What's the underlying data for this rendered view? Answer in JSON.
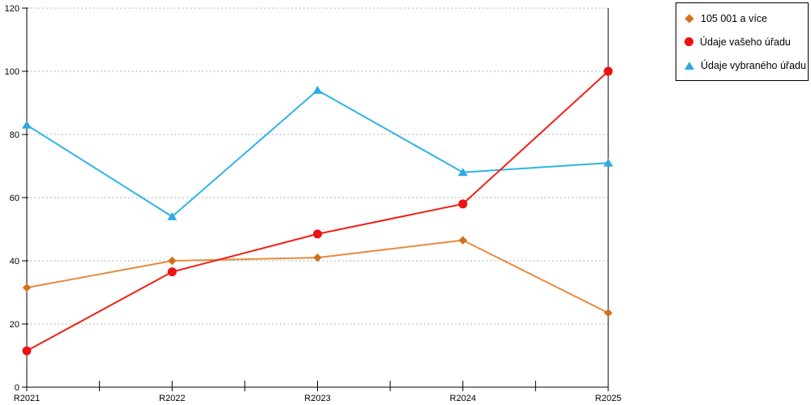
{
  "chart_data": {
    "type": "line",
    "title": "",
    "xlabel": "",
    "ylabel": "",
    "categories": [
      "R2021",
      "R2022",
      "R2023",
      "R2024",
      "R2025"
    ],
    "series": [
      {
        "name": "105 001 a více",
        "marker": "diamond",
        "line_color": "#E78A3E",
        "marker_color": "#D2711C",
        "values": [
          31.5,
          40,
          41,
          46.5,
          23.5
        ]
      },
      {
        "name": "Údaje vašeho úřadu",
        "marker": "circle",
        "line_color": "#F02015",
        "marker_color": "#EE1111",
        "values": [
          11.5,
          36.5,
          48.5,
          58,
          100
        ]
      },
      {
        "name": "Údaje vybraného úřadu",
        "marker": "triangle",
        "line_color": "#2FB3E8",
        "marker_color": "#2FABE1",
        "values": [
          83,
          54,
          94,
          68,
          71
        ]
      }
    ],
    "ylim": [
      0,
      120
    ],
    "yticks": [
      0,
      20,
      40,
      60,
      80,
      100,
      120
    ],
    "x_minor_ticks": true,
    "grid": "horizontal-dotted",
    "legend_position": "top-right",
    "draw_order": [
      0,
      2,
      1
    ]
  }
}
